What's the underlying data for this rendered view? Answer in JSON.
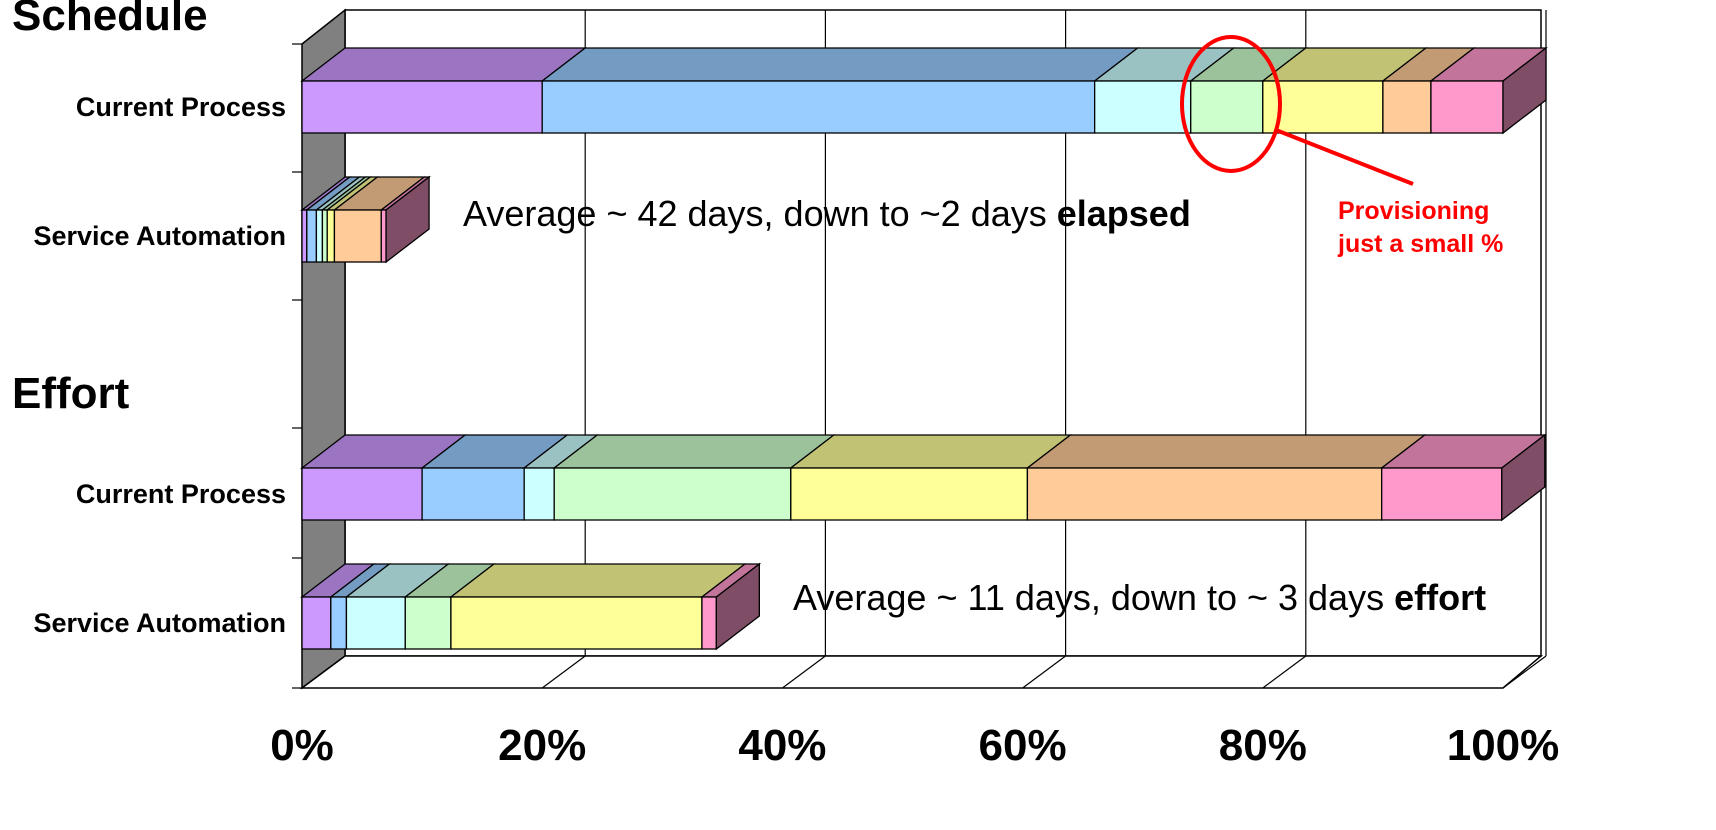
{
  "chart_data": {
    "type": "bar",
    "stacked": true,
    "percent_stacked": true,
    "three_d": true,
    "orientation": "horizontal",
    "section_titles": [
      "Schedule",
      "Effort"
    ],
    "groups": [
      {
        "section": "Schedule",
        "category": "Current Process",
        "values": [
          20,
          46,
          8,
          6,
          10,
          4,
          6
        ]
      },
      {
        "section": "Schedule",
        "category": "Service Automation",
        "values": [
          0.4,
          0.8,
          0.5,
          0.4,
          0.6,
          3.9,
          0.4
        ]
      },
      {
        "section": "Effort",
        "category": "Current Process",
        "values": [
          10,
          8.5,
          2.5,
          19.7,
          19.7,
          29.5,
          10
        ]
      },
      {
        "section": "Effort",
        "category": "Service Automation",
        "values": [
          2.4,
          1.3,
          4.9,
          3.8,
          20.9,
          0,
          1.2
        ]
      }
    ],
    "segment_colors": [
      "#cc99ff",
      "#99ccff",
      "#ccffff",
      "#ccffcc",
      "#ffff99",
      "#ffcc99",
      "#ff99cc"
    ],
    "xticks": [
      "0%",
      "20%",
      "40%",
      "60%",
      "80%",
      "100%"
    ],
    "xlim": [
      0,
      100
    ],
    "grid": true,
    "annotations": {
      "schedule_note": {
        "prefix": "Average ~ 42 days, down to ~2 days ",
        "bold": "elapsed"
      },
      "effort_note": {
        "prefix": "Average ~ 11 days, down to ~ 3 days ",
        "bold": "effort"
      },
      "callout_line1": "Provisioning",
      "callout_line2": "just a small %",
      "callout_color": "#ff0000"
    }
  }
}
